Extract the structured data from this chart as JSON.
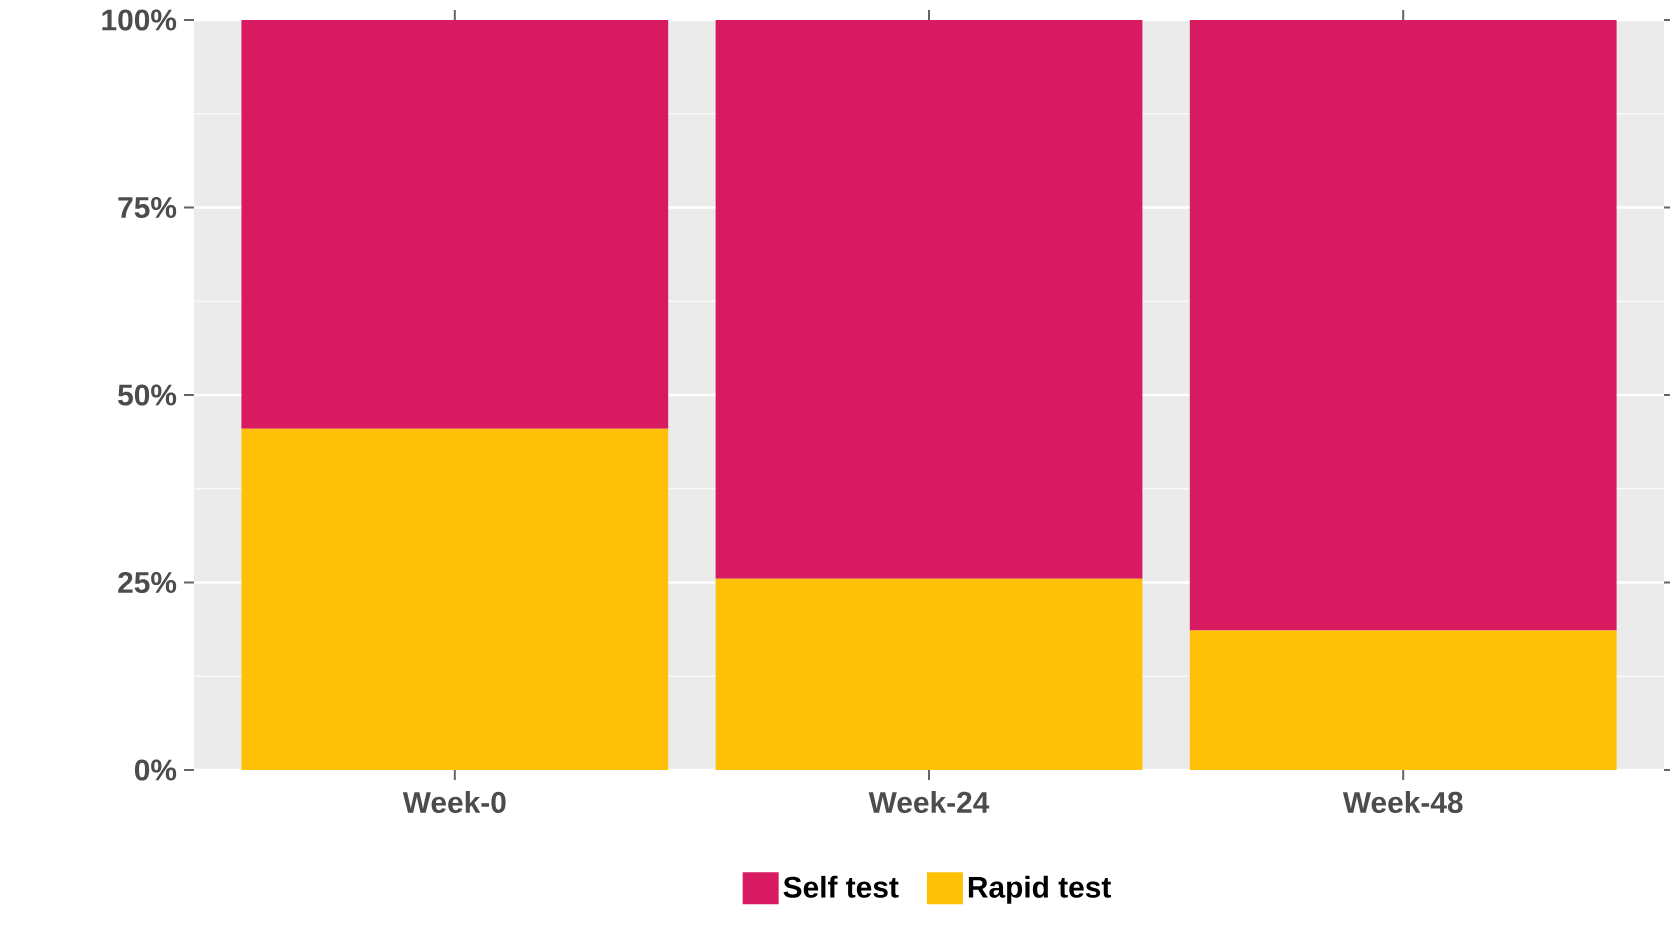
{
  "chart_data": {
    "type": "bar",
    "stacked": true,
    "categories": [
      "Week-0",
      "Week-24",
      "Week-48"
    ],
    "series": [
      {
        "name": "Rapid test",
        "color": "#ffc107",
        "values": [
          45.5,
          25.5,
          18.6
        ]
      },
      {
        "name": "Self test",
        "color": "#d81b60",
        "values": [
          54.5,
          74.5,
          81.4
        ]
      }
    ],
    "ylim": [
      0,
      100
    ],
    "yticks": [
      {
        "value": 0,
        "label": "0%"
      },
      {
        "value": 25,
        "label": "25%"
      },
      {
        "value": 50,
        "label": "50%"
      },
      {
        "value": 75,
        "label": "75%"
      },
      {
        "value": 100,
        "label": "100%"
      }
    ],
    "grid": "y",
    "legend": "bottom"
  }
}
